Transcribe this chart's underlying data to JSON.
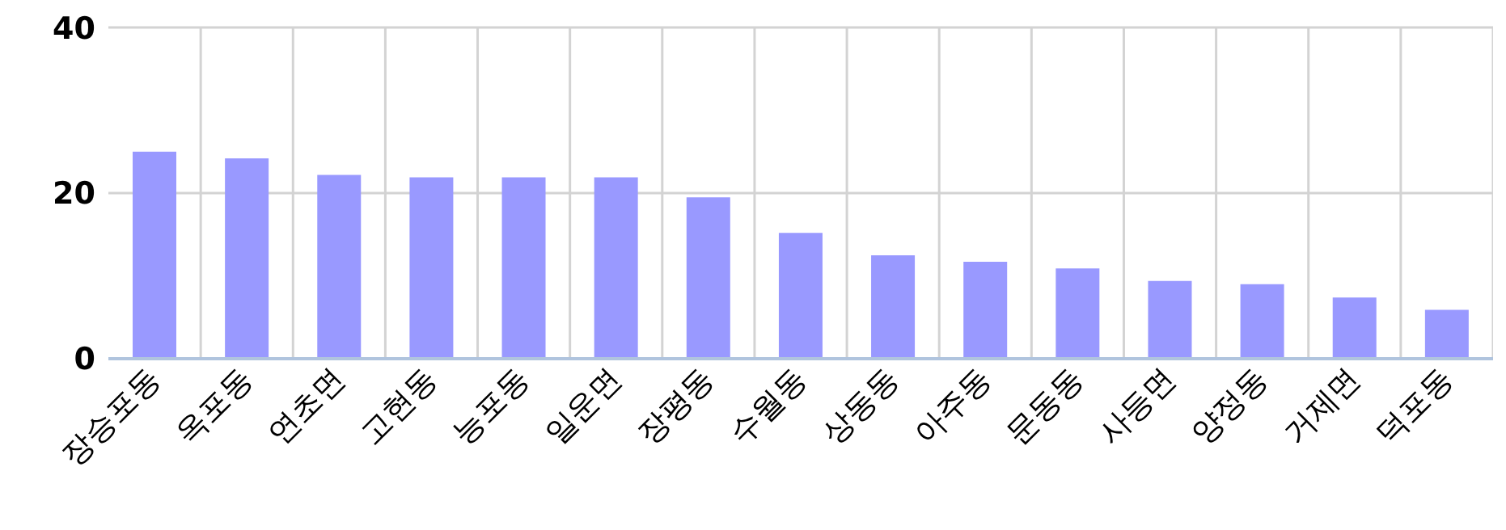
{
  "chart_data": {
    "type": "bar",
    "categories": [
      "장승포동",
      "옥포동",
      "연초면",
      "고현동",
      "능포동",
      "일운면",
      "장평동",
      "수월동",
      "상동동",
      "아주동",
      "문동동",
      "사등면",
      "양정동",
      "거제면",
      "덕포동"
    ],
    "values": [
      25.0,
      24.2,
      22.2,
      21.9,
      21.9,
      21.9,
      19.5,
      15.2,
      12.5,
      11.7,
      10.9,
      9.4,
      9.0,
      7.4,
      5.9
    ],
    "color": "#9999ff",
    "ylim": [
      0,
      40
    ],
    "yticks": [
      0,
      20,
      40
    ],
    "grid": true
  }
}
